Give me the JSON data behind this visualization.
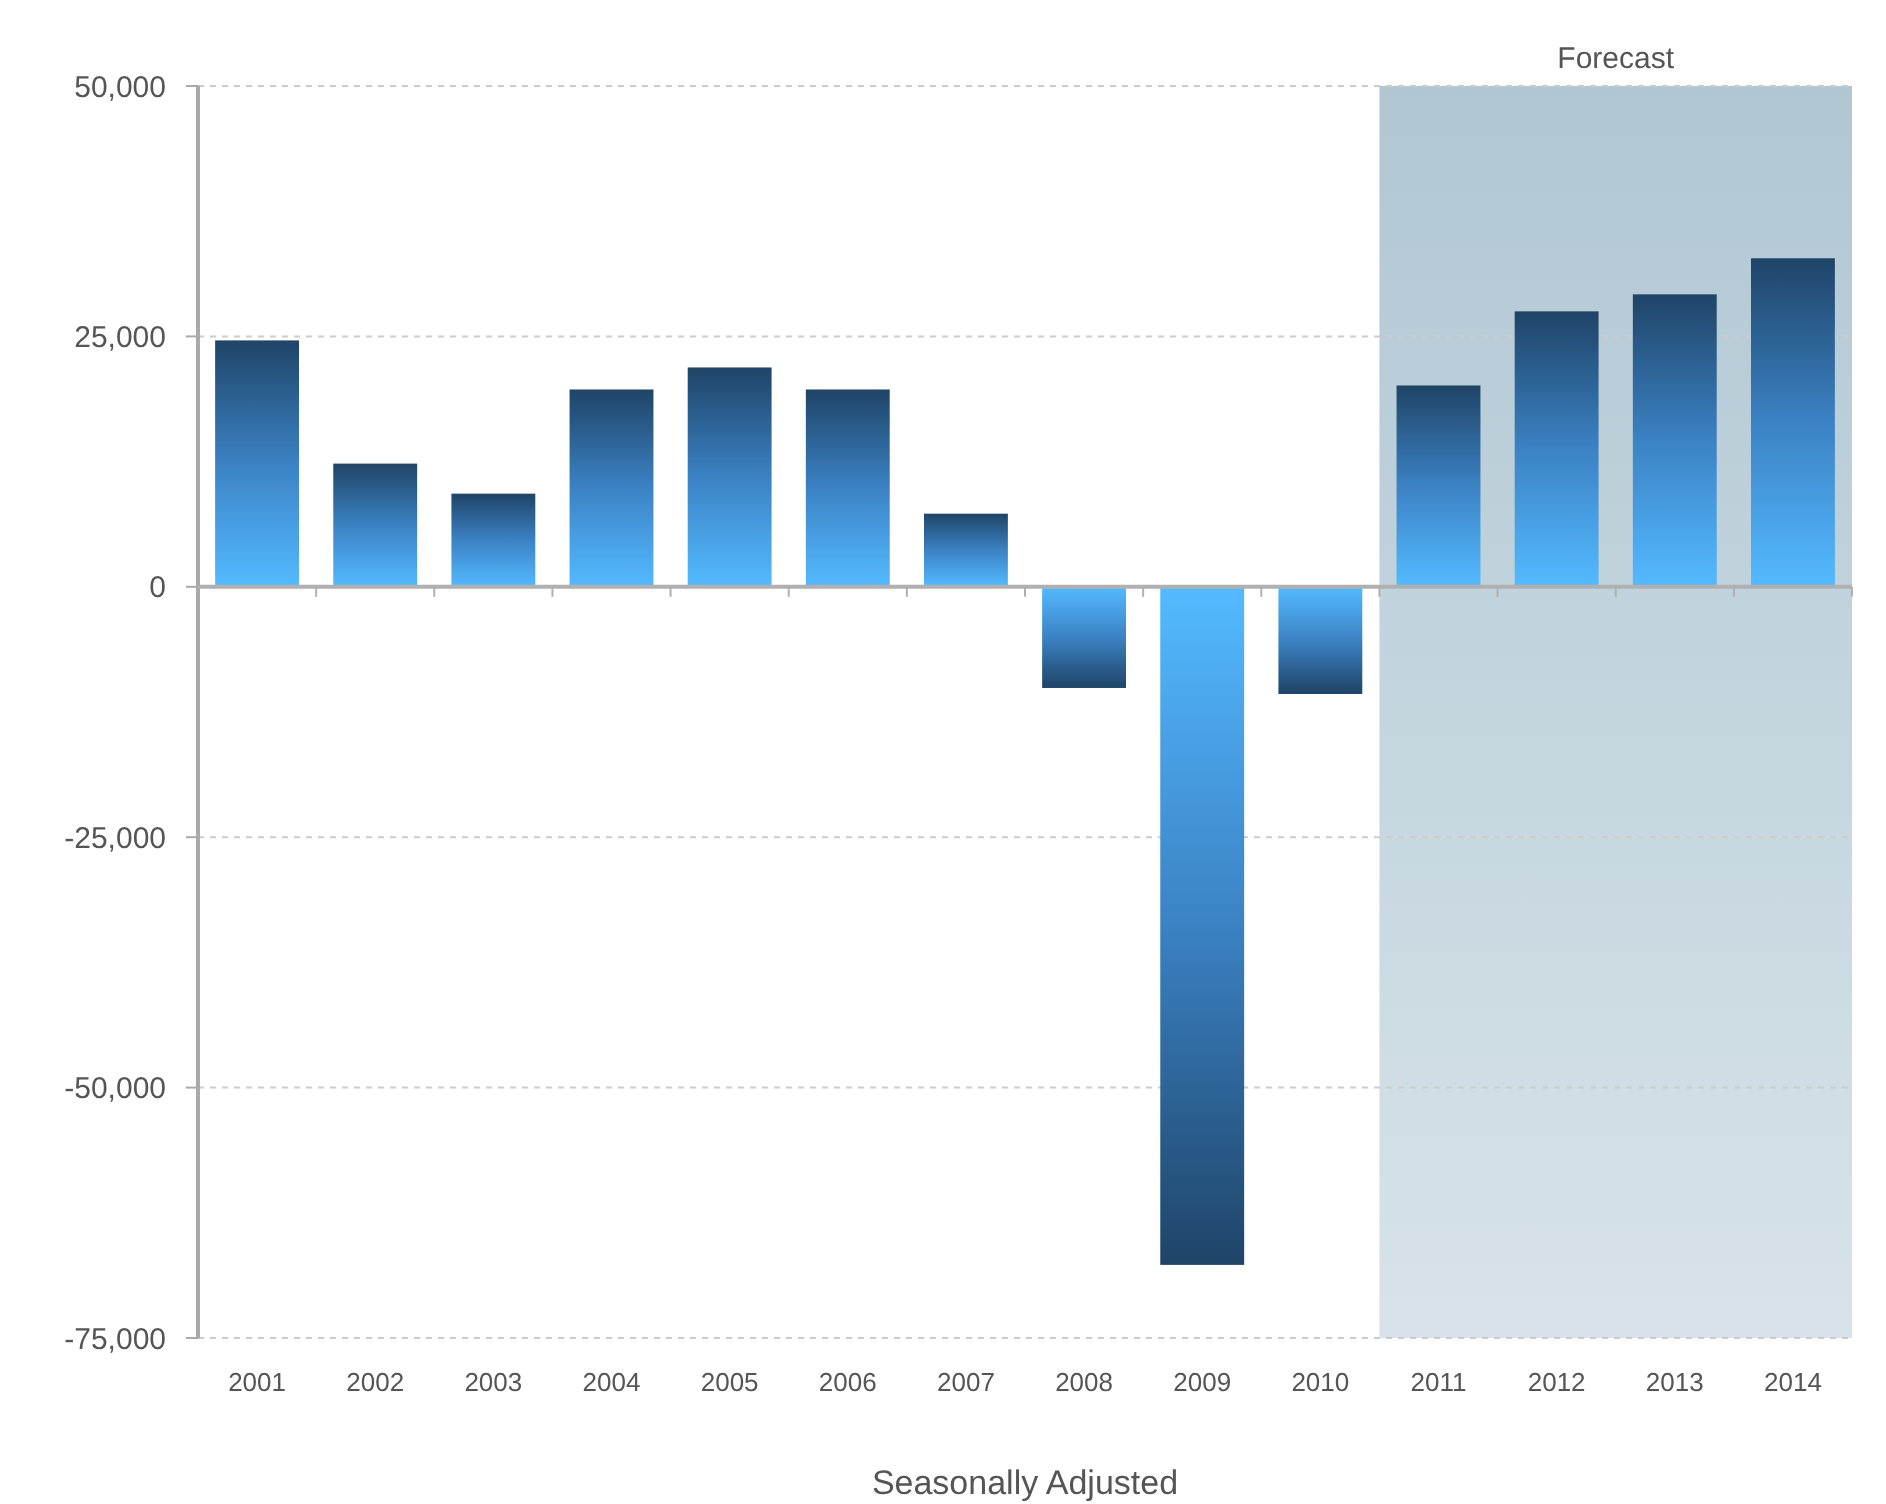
{
  "chart_data": {
    "type": "bar",
    "xlabel": "Seasonally Adjusted",
    "categories": [
      "2001",
      "2002",
      "2003",
      "2004",
      "2005",
      "2006",
      "2007",
      "2008",
      "2009",
      "2010",
      "2011",
      "2012",
      "2013",
      "2014"
    ],
    "values": [
      24600,
      12300,
      9300,
      19700,
      21900,
      19700,
      7300,
      -10100,
      -67700,
      -10700,
      20100,
      27500,
      29200,
      32800
    ],
    "color": "#3b82c4",
    "ylim": [
      -75000,
      50000
    ],
    "yticks": [
      {
        "value": -75000,
        "label": "-75,000"
      },
      {
        "value": -50000,
        "label": "-50,000"
      },
      {
        "value": -25000,
        "label": "-25,000"
      },
      {
        "value": 0,
        "label": "0"
      },
      {
        "value": 25000,
        "label": "25,000"
      },
      {
        "value": 50000,
        "label": "50,000"
      }
    ],
    "grid": "y",
    "bands": [
      {
        "axis": "x",
        "from": "2011",
        "to": "2014",
        "label": "Forecast",
        "color": "#b0c7d3"
      }
    ]
  }
}
